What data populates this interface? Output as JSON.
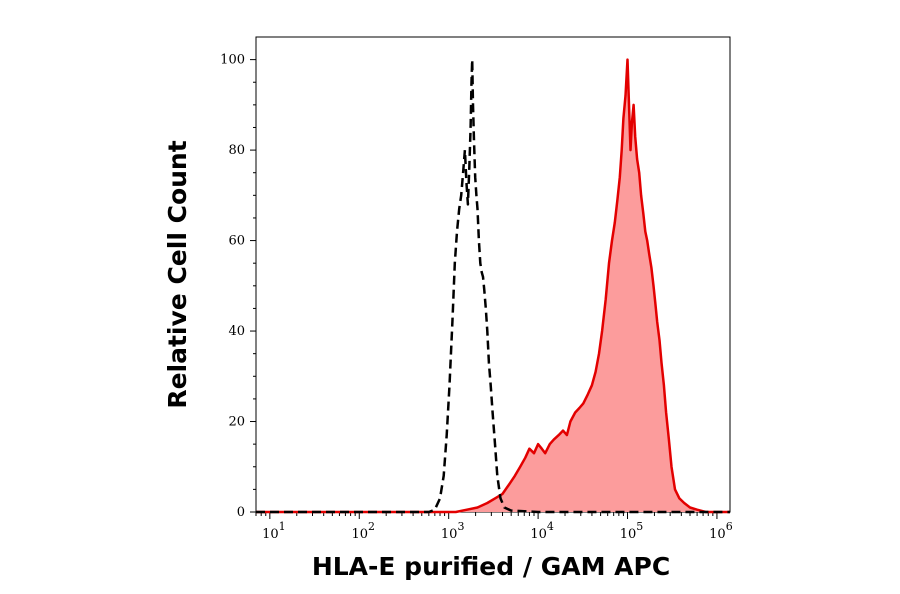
{
  "chart_data": {
    "type": "area",
    "xlabel": "HLA-E purified / GAM APC",
    "ylabel": "Relative Cell Count",
    "x_scale": "log",
    "xlim": [
      7,
      1400000
    ],
    "ylim": [
      0,
      105
    ],
    "x_ticks": [
      {
        "value": 10,
        "base": "10",
        "exp": "1"
      },
      {
        "value": 100,
        "base": "10",
        "exp": "2"
      },
      {
        "value": 1000,
        "base": "10",
        "exp": "3"
      },
      {
        "value": 10000,
        "base": "10",
        "exp": "4"
      },
      {
        "value": 100000,
        "base": "10",
        "exp": "5"
      },
      {
        "value": 1000000,
        "base": "10",
        "exp": "6"
      }
    ],
    "y_ticks": [
      0,
      20,
      40,
      60,
      80,
      100
    ],
    "grid": false,
    "series": [
      {
        "style": "dashed",
        "color": "#000000",
        "fill": "none",
        "points": [
          [
            7,
            0
          ],
          [
            600,
            0
          ],
          [
            700,
            0.5
          ],
          [
            800,
            3
          ],
          [
            880,
            8
          ],
          [
            950,
            17
          ],
          [
            1020,
            28
          ],
          [
            1100,
            42
          ],
          [
            1170,
            55
          ],
          [
            1240,
            62
          ],
          [
            1310,
            67
          ],
          [
            1380,
            70
          ],
          [
            1450,
            75
          ],
          [
            1520,
            80
          ],
          [
            1580,
            73
          ],
          [
            1640,
            68
          ],
          [
            1700,
            76
          ],
          [
            1760,
            85
          ],
          [
            1800,
            95
          ],
          [
            1830,
            100
          ],
          [
            1870,
            90
          ],
          [
            1920,
            82
          ],
          [
            1980,
            74
          ],
          [
            2040,
            70
          ],
          [
            2100,
            67
          ],
          [
            2180,
            60
          ],
          [
            2260,
            55
          ],
          [
            2340,
            53
          ],
          [
            2420,
            52
          ],
          [
            2500,
            49
          ],
          [
            2600,
            45
          ],
          [
            2700,
            40
          ],
          [
            2820,
            33
          ],
          [
            2950,
            28
          ],
          [
            3100,
            22
          ],
          [
            3300,
            15
          ],
          [
            3500,
            8
          ],
          [
            3800,
            3
          ],
          [
            4200,
            1
          ],
          [
            5000,
            0.3
          ],
          [
            10000,
            0
          ],
          [
            1400000,
            0
          ]
        ]
      },
      {
        "style": "solid",
        "color": "#e30000",
        "fill": "#fc9c9c",
        "points": [
          [
            7,
            0
          ],
          [
            1200,
            0
          ],
          [
            1600,
            0.5
          ],
          [
            2100,
            1
          ],
          [
            2700,
            2
          ],
          [
            3300,
            3
          ],
          [
            4000,
            4
          ],
          [
            4700,
            6
          ],
          [
            5500,
            8
          ],
          [
            6300,
            10
          ],
          [
            7200,
            12
          ],
          [
            8000,
            14
          ],
          [
            9000,
            13
          ],
          [
            10000,
            15
          ],
          [
            11000,
            14
          ],
          [
            12000,
            13
          ],
          [
            13500,
            15
          ],
          [
            15000,
            16
          ],
          [
            17000,
            17
          ],
          [
            19000,
            18
          ],
          [
            21000,
            17
          ],
          [
            23000,
            20
          ],
          [
            26000,
            22
          ],
          [
            29000,
            23
          ],
          [
            32000,
            24
          ],
          [
            36000,
            26
          ],
          [
            40000,
            28
          ],
          [
            44000,
            31
          ],
          [
            48000,
            35
          ],
          [
            52000,
            40
          ],
          [
            57000,
            47
          ],
          [
            62000,
            55
          ],
          [
            67000,
            60
          ],
          [
            72000,
            64
          ],
          [
            77000,
            69
          ],
          [
            82000,
            74
          ],
          [
            86000,
            80
          ],
          [
            90000,
            87
          ],
          [
            95000,
            92
          ],
          [
            100000,
            100
          ],
          [
            104000,
            90
          ],
          [
            108000,
            80
          ],
          [
            112000,
            86
          ],
          [
            117000,
            90
          ],
          [
            122000,
            83
          ],
          [
            128000,
            78
          ],
          [
            135000,
            75
          ],
          [
            142000,
            70
          ],
          [
            150000,
            66
          ],
          [
            158000,
            62
          ],
          [
            166000,
            60
          ],
          [
            175000,
            57
          ],
          [
            185000,
            54
          ],
          [
            195000,
            50
          ],
          [
            205000,
            46
          ],
          [
            215000,
            42
          ],
          [
            228000,
            38
          ],
          [
            240000,
            33
          ],
          [
            255000,
            28
          ],
          [
            270000,
            22
          ],
          [
            290000,
            16
          ],
          [
            310000,
            10
          ],
          [
            340000,
            5
          ],
          [
            380000,
            3
          ],
          [
            430000,
            2
          ],
          [
            500000,
            1
          ],
          [
            600000,
            0.5
          ],
          [
            750000,
            0
          ],
          [
            1400000,
            0
          ]
        ]
      }
    ]
  }
}
